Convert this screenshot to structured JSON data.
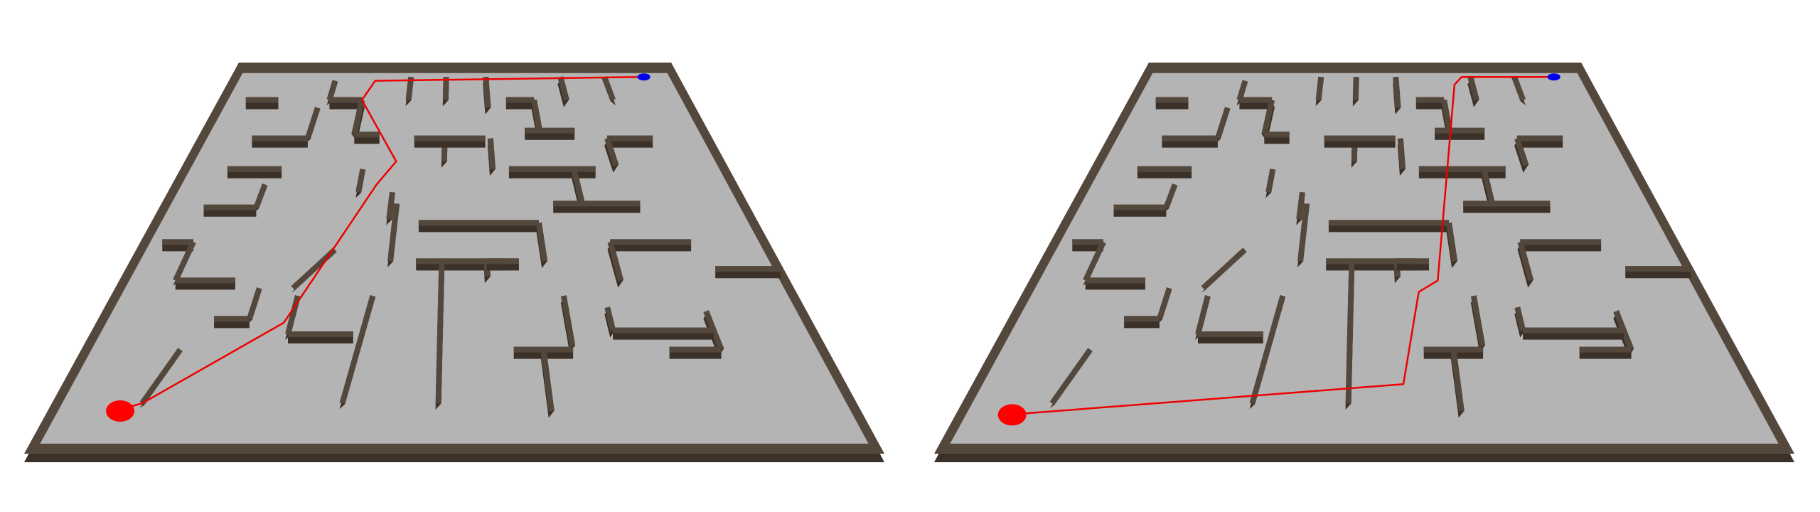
{
  "scene": {
    "panels": [
      {
        "id": "left",
        "path_variant": "a",
        "start_marker_color": "#ff0000",
        "goal_marker_color": "#0000ee",
        "path_color": "#ee0000"
      },
      {
        "id": "right",
        "path_variant": "b",
        "start_marker_color": "#ff0000",
        "goal_marker_color": "#0000ee",
        "path_color": "#ee0000"
      }
    ],
    "colors": {
      "floor": "#b4b4b4",
      "wall_top": "#54473c",
      "wall_side": "#3c3128",
      "background": "#ffffff"
    }
  }
}
